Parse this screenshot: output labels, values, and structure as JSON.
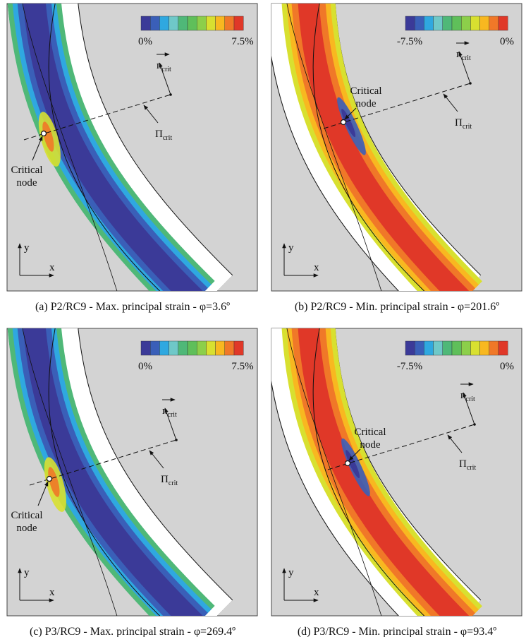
{
  "colorbar_colors": [
    "#3b3a98",
    "#3a5fb8",
    "#2fa8e0",
    "#6fc8c8",
    "#4fb878",
    "#5fbf5a",
    "#8ccf4a",
    "#d8e030",
    "#f8b820",
    "#f07828",
    "#e03828"
  ],
  "panels": [
    {
      "caption": "(a) P2/RC9 - Max. principal strain - φ=3.6º",
      "colorbar_min": "0%",
      "colorbar_max": "7.5%",
      "normal_label": "n",
      "normal_sub": "crit",
      "plane_label": "Π",
      "plane_sub": "crit",
      "node_label": [
        "Critical",
        "node"
      ],
      "y_axis": "y",
      "x_axis": "x"
    },
    {
      "caption": "(b) P2/RC9 - Min. principal strain - φ=201.6º",
      "colorbar_min": "-7.5%",
      "colorbar_max": "0%",
      "normal_label": "n",
      "normal_sub": "crit",
      "plane_label": "Π",
      "plane_sub": "crit",
      "node_label": [
        "Critical",
        "node"
      ],
      "y_axis": "y",
      "x_axis": "x"
    },
    {
      "caption": "(c) P3/RC9 - Max. principal strain - φ=269.4º",
      "colorbar_min": "0%",
      "colorbar_max": "7.5%",
      "normal_label": "n",
      "normal_sub": "crit",
      "plane_label": "Π",
      "plane_sub": "crit",
      "node_label": [
        "Critical",
        "node"
      ],
      "y_axis": "y",
      "x_axis": "x"
    },
    {
      "caption": "(d) P3/RC9 - Min. principal strain - φ=93.4º",
      "colorbar_min": "-7.5%",
      "colorbar_max": "0%",
      "normal_label": "n",
      "normal_sub": "crit",
      "plane_label": "Π",
      "plane_sub": "crit",
      "node_label": [
        "Critical",
        "node"
      ],
      "y_axis": "y",
      "x_axis": "x"
    }
  ]
}
